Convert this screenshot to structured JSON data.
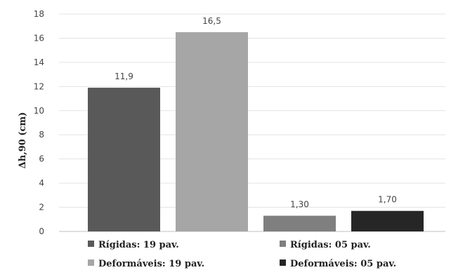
{
  "chart_data": {
    "type": "bar",
    "ylabel": "Δh,90 (cm)",
    "ylim": [
      0,
      18
    ],
    "yticks": [
      "0",
      "2",
      "4",
      "6",
      "8",
      "10",
      "12",
      "14",
      "16",
      "18"
    ],
    "grid": true,
    "legend_position": "bottom",
    "series": [
      {
        "name": "Rígidas: 19 pav.",
        "value": 11.9,
        "label": "11,9",
        "color": "#595959"
      },
      {
        "name": "Deformáveis: 19 pav.",
        "value": 16.5,
        "label": "16,5",
        "color": "#a6a6a6"
      },
      {
        "name": "Rígidas: 05 pav.",
        "value": 1.3,
        "label": "1,30",
        "color": "#7f7f7f"
      },
      {
        "name": "Deformáveis: 05 pav.",
        "value": 1.7,
        "label": "1,70",
        "color": "#262626"
      }
    ]
  }
}
